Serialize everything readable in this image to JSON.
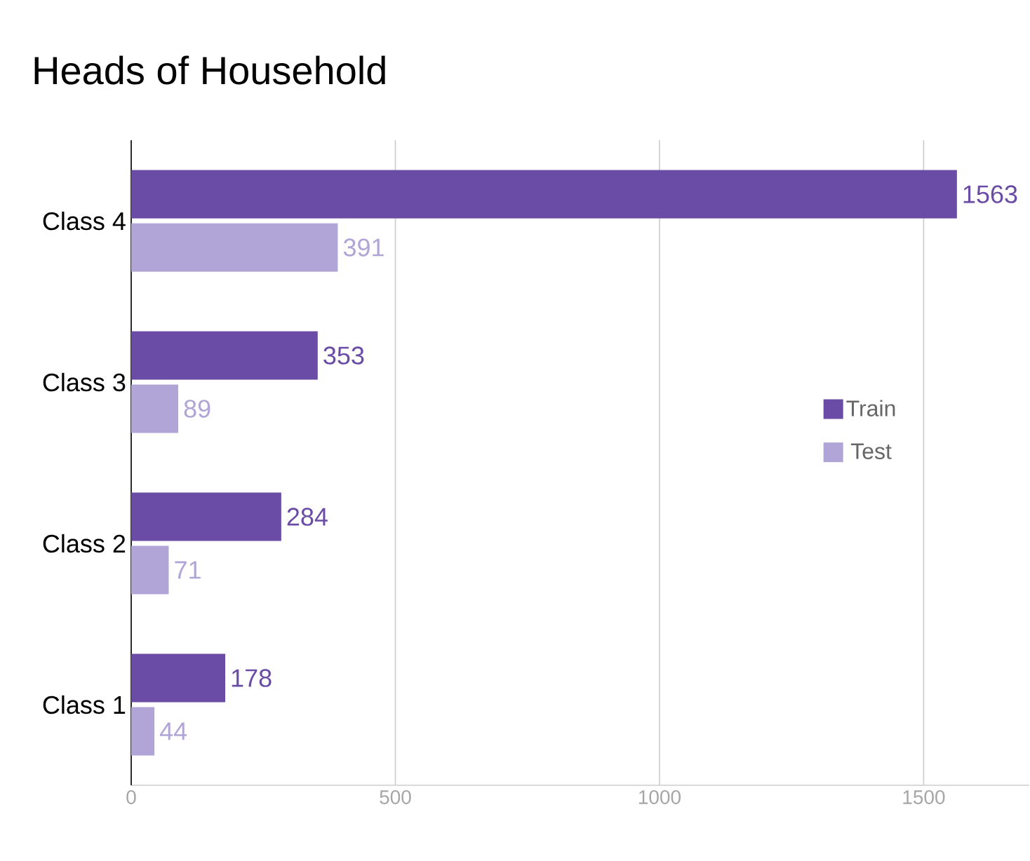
{
  "chart_data": {
    "type": "bar",
    "orientation": "horizontal",
    "title": "Heads of Household",
    "categories": [
      "Class 4",
      "Class 3",
      "Class 2",
      "Class 1"
    ],
    "series": [
      {
        "name": "Train",
        "color": "#6a4ca6",
        "values": [
          1563,
          353,
          284,
          178
        ]
      },
      {
        "name": "Test",
        "color": "#b1a4d6",
        "values": [
          391,
          89,
          71,
          44
        ]
      }
    ],
    "xlim": [
      0,
      1700
    ],
    "xticks": [
      0,
      500,
      1000,
      1500
    ],
    "grid": "x",
    "legend": "right",
    "data_labels": true
  }
}
